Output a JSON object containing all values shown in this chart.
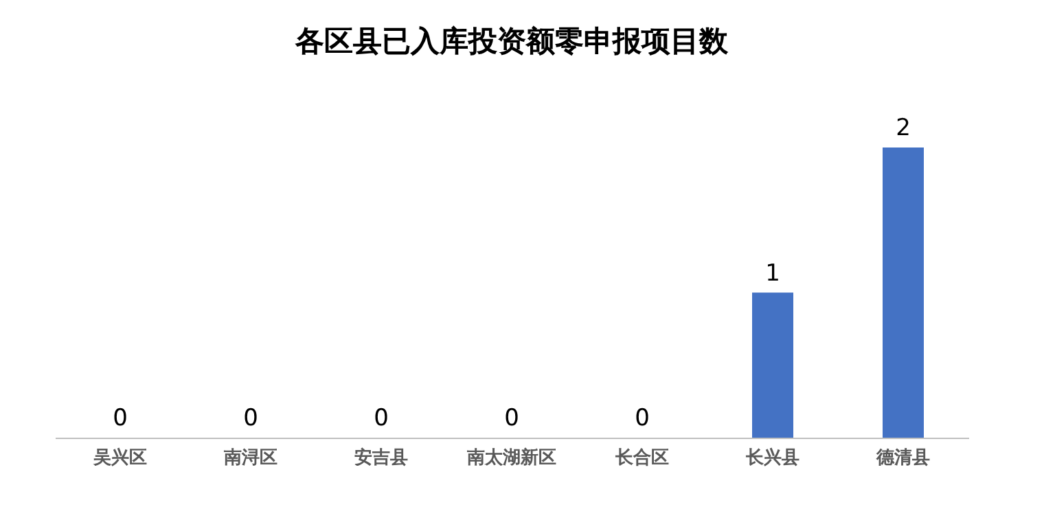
{
  "chart_data": {
    "type": "bar",
    "title": "各区县已入库投资额零申报项目数",
    "categories": [
      "吴兴区",
      "南浔区",
      "安吉县",
      "南太湖新区",
      "长合区",
      "长兴县",
      "德清县"
    ],
    "values": [
      0,
      0,
      0,
      0,
      0,
      1,
      2
    ],
    "color": "#4472c4",
    "data_labels": true
  }
}
